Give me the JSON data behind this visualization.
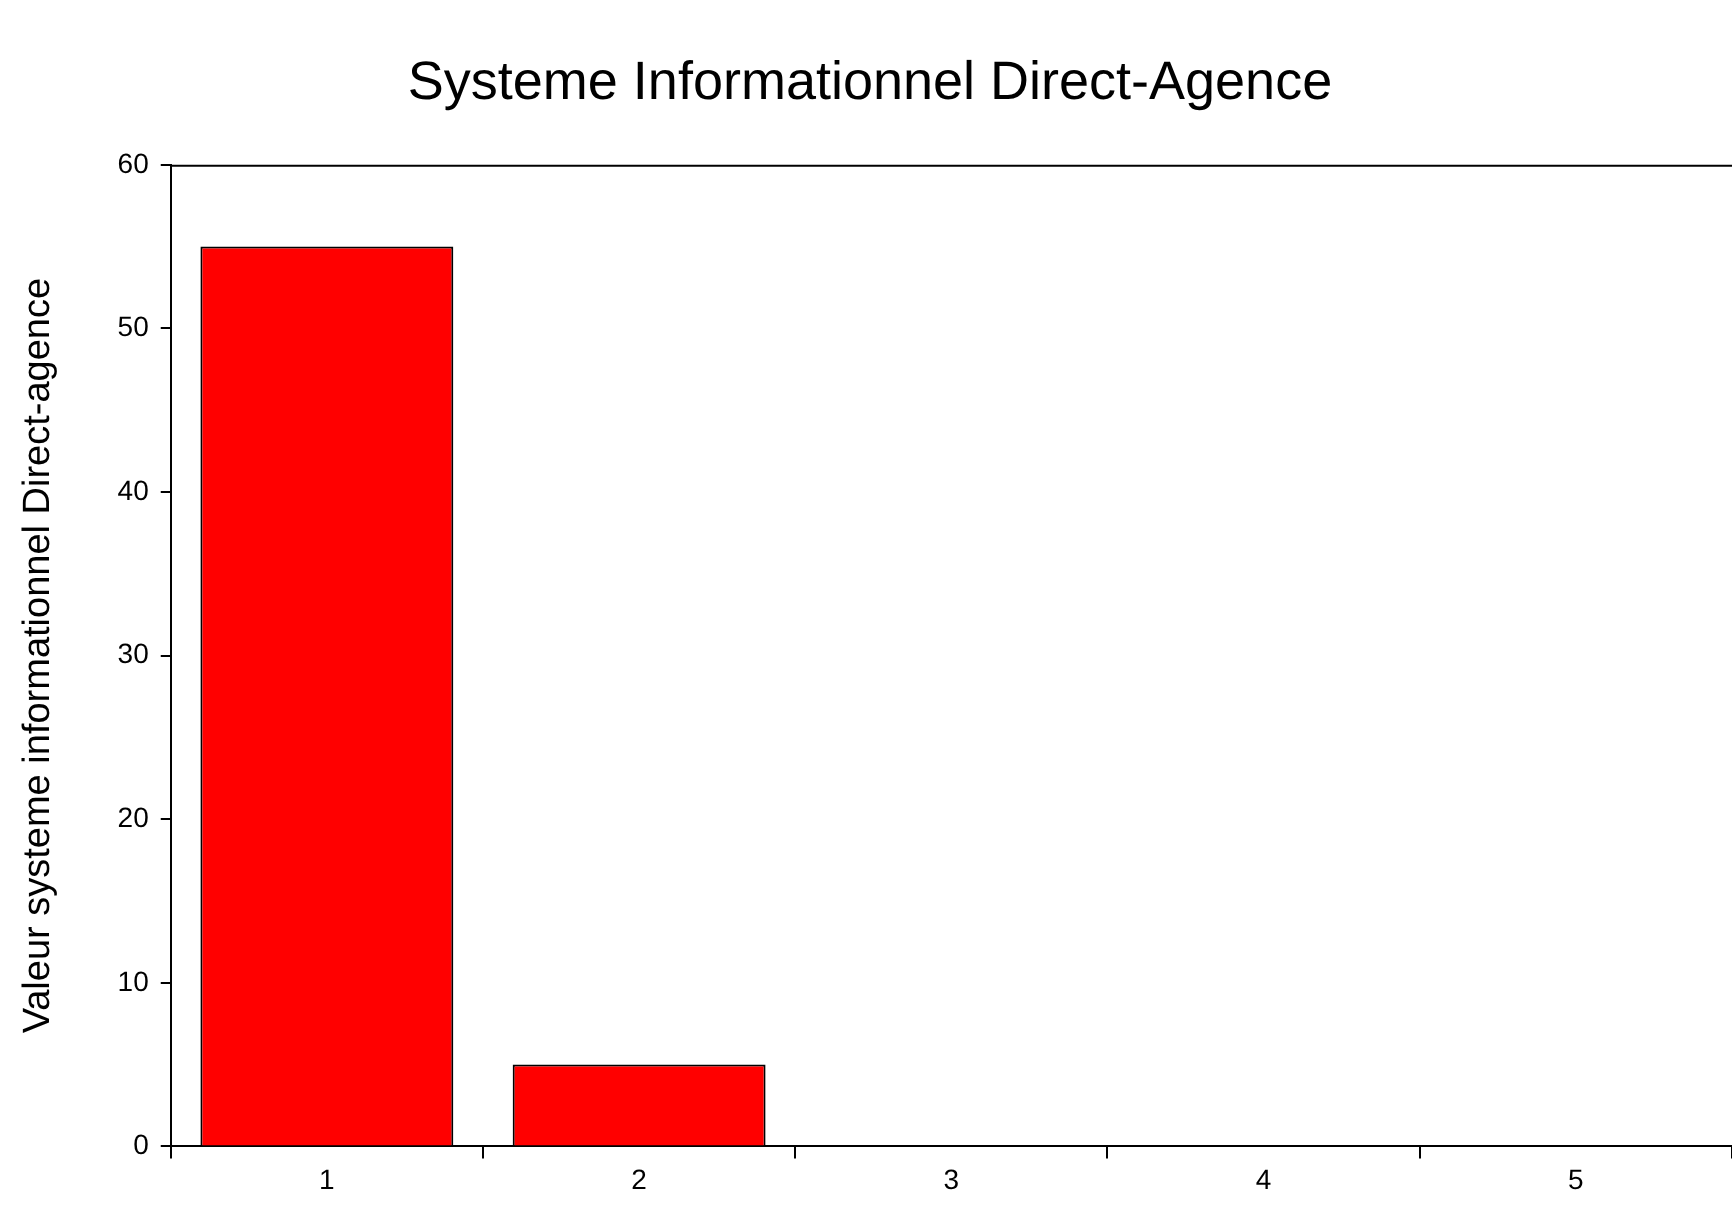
{
  "chart_data": {
    "type": "bar",
    "title": "Systeme Informationnel Direct-Agence",
    "ylabel": "Valeur systeme informationnel Direct-agence",
    "categories": [
      "1",
      "2",
      "3",
      "4",
      "5"
    ],
    "values": [
      55,
      5,
      0,
      0,
      0
    ],
    "color": "#ff0000",
    "ylim": [
      0,
      60
    ],
    "yticks": [
      0,
      10,
      20,
      30,
      40,
      50,
      60
    ],
    "grid": false,
    "legend": false
  }
}
